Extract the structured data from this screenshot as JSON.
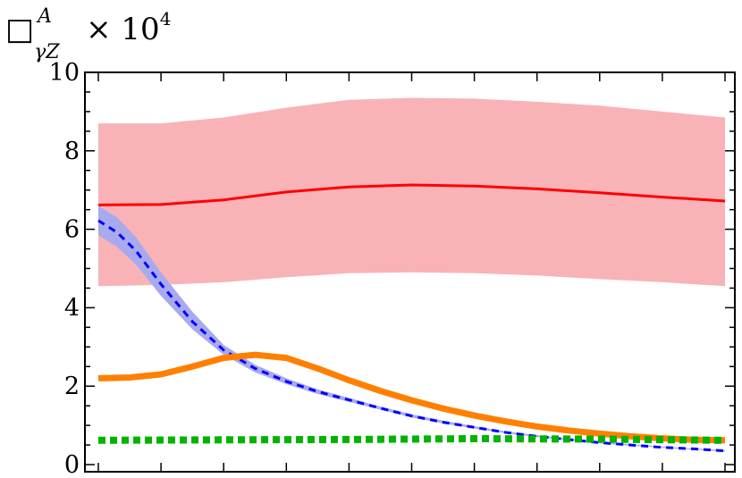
{
  "chart_data": {
    "type": "line",
    "title": {
      "symbol": "□",
      "superscript": "A",
      "subscript": "γZ",
      "multiplier": "× 10",
      "exponent": "4"
    },
    "xlabel": "",
    "ylabel": "",
    "xlim": [
      0,
      10
    ],
    "ylim": [
      0,
      10
    ],
    "xticks": [
      0,
      1,
      2,
      3,
      4,
      5,
      6,
      7,
      8,
      9,
      10
    ],
    "yticks": [
      0,
      2,
      4,
      6,
      8,
      10
    ],
    "ytick_labels": [
      "0",
      "2",
      "4",
      "6",
      "8",
      "10"
    ],
    "grid": false,
    "bands": [
      {
        "color": "#f9b3b7",
        "x": [
          0.0,
          1.0,
          2.0,
          3.0,
          4.0,
          5.0,
          6.0,
          7.0,
          8.0,
          9.0,
          10.0
        ],
        "lower": [
          4.55,
          4.58,
          4.65,
          4.78,
          4.88,
          4.9,
          4.88,
          4.82,
          4.73,
          4.65,
          4.55
        ],
        "upper": [
          8.7,
          8.7,
          8.85,
          9.1,
          9.3,
          9.35,
          9.33,
          9.25,
          9.15,
          9.0,
          8.85
        ]
      },
      {
        "color": "#a9a9ee",
        "x": [
          0.0,
          0.3,
          0.6,
          1.0,
          1.5,
          2.0,
          2.5,
          3.0,
          3.5,
          4.0,
          4.5,
          5.0,
          5.5,
          6.0,
          6.5,
          7.0,
          7.5,
          8.0,
          8.5,
          9.0,
          9.5,
          10.0
        ],
        "lower": [
          5.85,
          5.55,
          5.1,
          4.3,
          3.45,
          2.8,
          2.35,
          2.05,
          1.8,
          1.6,
          1.4,
          1.2,
          1.05,
          0.92,
          0.8,
          0.7,
          0.62,
          0.54,
          0.48,
          0.43,
          0.38,
          0.33
        ],
        "upper": [
          6.6,
          6.3,
          5.8,
          4.9,
          3.9,
          3.05,
          2.55,
          2.2,
          1.92,
          1.7,
          1.48,
          1.28,
          1.12,
          0.98,
          0.85,
          0.75,
          0.66,
          0.58,
          0.52,
          0.46,
          0.41,
          0.37
        ]
      }
    ],
    "series": [
      {
        "color": "#ff0000",
        "style": "solid",
        "width": 3,
        "x": [
          0.0,
          1.0,
          2.0,
          3.0,
          4.0,
          5.0,
          6.0,
          7.0,
          8.0,
          9.0,
          10.0
        ],
        "y": [
          6.62,
          6.63,
          6.75,
          6.95,
          7.08,
          7.13,
          7.1,
          7.03,
          6.93,
          6.82,
          6.72
        ]
      },
      {
        "color": "#0000ff",
        "style": "dashed",
        "width": 3,
        "x": [
          0.0,
          0.3,
          0.6,
          1.0,
          1.5,
          2.0,
          2.5,
          3.0,
          3.5,
          4.0,
          4.5,
          5.0,
          5.5,
          6.0,
          6.5,
          7.0,
          7.5,
          8.0,
          8.5,
          9.0,
          9.5,
          10.0
        ],
        "y": [
          6.22,
          5.92,
          5.45,
          4.6,
          3.65,
          2.92,
          2.45,
          2.12,
          1.86,
          1.65,
          1.44,
          1.24,
          1.08,
          0.95,
          0.82,
          0.72,
          0.64,
          0.56,
          0.5,
          0.44,
          0.4,
          0.35
        ]
      },
      {
        "color": "#ff8000",
        "style": "solid",
        "width": 7,
        "x": [
          0.0,
          0.5,
          1.0,
          1.5,
          2.0,
          2.5,
          3.0,
          3.5,
          4.0,
          4.5,
          5.0,
          5.5,
          6.0,
          6.5,
          7.0,
          7.5,
          8.0,
          8.5,
          9.0,
          9.5,
          10.0
        ],
        "y": [
          2.2,
          2.22,
          2.3,
          2.5,
          2.72,
          2.8,
          2.72,
          2.45,
          2.15,
          1.88,
          1.64,
          1.43,
          1.25,
          1.1,
          0.97,
          0.87,
          0.79,
          0.72,
          0.67,
          0.63,
          0.62
        ]
      },
      {
        "color": "#00b400",
        "style": "dotted",
        "width": 8,
        "x": [
          0.0,
          2.0,
          4.0,
          6.0,
          8.0,
          10.0
        ],
        "y": [
          0.62,
          0.63,
          0.64,
          0.66,
          0.65,
          0.62
        ]
      }
    ]
  }
}
